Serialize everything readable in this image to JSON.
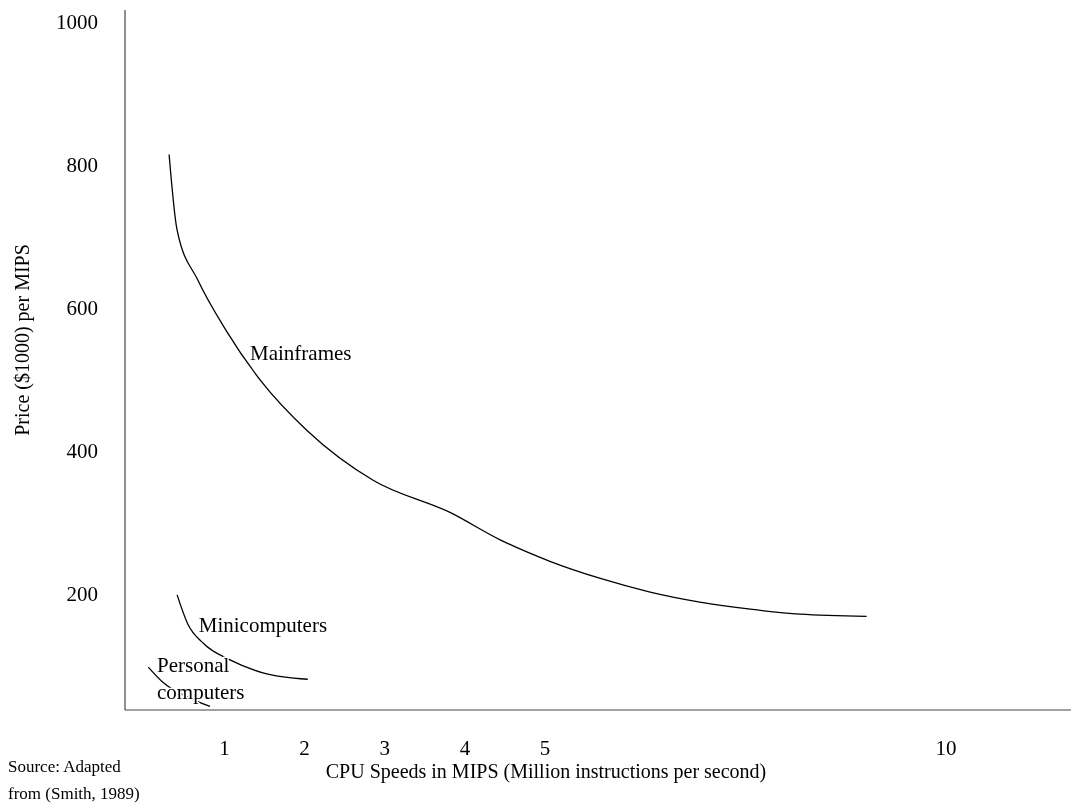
{
  "chart_data": {
    "type": "line",
    "xlabel": "CPU Speeds in MIPS (Million instructions per second)",
    "ylabel": "Price ($1000) per MIPS",
    "xlim": [
      -0.24,
      11.56
    ],
    "xticks": [
      1,
      2,
      3,
      4,
      5,
      10
    ],
    "ylim": [
      38,
      1017
    ],
    "yticks": [
      200,
      400,
      600,
      800,
      1000
    ],
    "grid": false,
    "marker": "none",
    "line_style": "solid",
    "series": [
      {
        "color": "#000000",
        "x": [
          0.31,
          0.41,
          0.67,
          1.02,
          1.45,
          2.03,
          2.86,
          3.82,
          4.44,
          5.06,
          5.69,
          6.31,
          6.93,
          7.56,
          8.18,
          9.01
        ],
        "values": [
          815,
          709,
          639,
          569,
          499,
          429,
          359,
          314,
          276,
          246,
          222,
          203,
          189,
          179,
          172,
          169
        ]
      },
      {
        "color": "#000000",
        "x": [
          0.41,
          0.54,
          0.74,
          1.07,
          1.48,
          2.04
        ],
        "values": [
          199,
          159,
          131,
          108,
          90,
          81
        ]
      },
      {
        "color": "#000000",
        "x": [
          0.05,
          0.24,
          0.54,
          0.82
        ],
        "values": [
          98,
          76,
          56,
          43
        ]
      }
    ],
    "annotations": [
      {
        "text": "Mainframes",
        "x": 1.27,
        "y": 527
      },
      {
        "text": "Minicomputers",
        "x": 0.63,
        "y": 147
      },
      {
        "text": "Personal\ncomputers",
        "x": 0.11,
        "y": 91
      },
      "Source: Adapted\nfrom (Smith, 1989)"
    ]
  }
}
